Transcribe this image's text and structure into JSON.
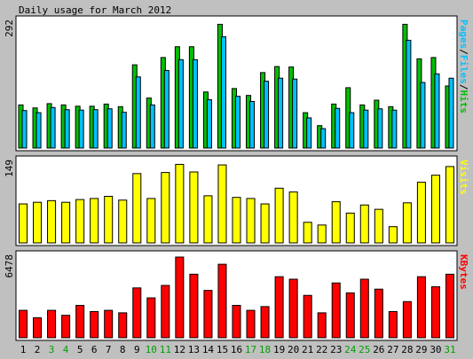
{
  "chart_data": {
    "type": "bar",
    "title": "Daily usage for March 2012",
    "categories": [
      "1",
      "2",
      "3",
      "4",
      "5",
      "6",
      "7",
      "8",
      "9",
      "10",
      "11",
      "12",
      "13",
      "14",
      "15",
      "16",
      "17",
      "18",
      "19",
      "20",
      "21",
      "22",
      "23",
      "24",
      "25",
      "26",
      "27",
      "28",
      "29",
      "30",
      "31"
    ],
    "weekend_days": [
      "3",
      "4",
      "10",
      "11",
      "17",
      "18",
      "24",
      "25",
      "31"
    ],
    "panels": [
      {
        "name": "hits-files-pages",
        "ymax_label": "292",
        "ymax": 292,
        "right_label_parts": [
          {
            "text": "Pages",
            "color": "#00c0ff"
          },
          {
            "text": "/",
            "color": "#000000"
          },
          {
            "text": "Files",
            "color": "#00c0ff"
          },
          {
            "text": "/",
            "color": "#000000"
          },
          {
            "text": "Hits",
            "color": "#00c000"
          }
        ],
        "series": [
          {
            "name": "Hits",
            "color": "#00c000",
            "values": [
              100,
              93,
              103,
              100,
              97,
              97,
              102,
              96,
              193,
              116,
              210,
              235,
              235,
              130,
              287,
              138,
              122,
              175,
              189,
              188,
              82,
              52,
              102,
              140,
              100,
              111,
              96,
              287,
              207,
              210,
              144
            ]
          },
          {
            "name": "Files",
            "color": "#00c0ff",
            "values": [
              87,
              82,
              94,
              89,
              88,
              89,
              91,
              83,
              165,
              100,
              180,
              205,
              205,
              112,
              258,
              120,
              108,
              155,
              162,
              160,
              70,
              45,
              92,
              82,
              88,
              91,
              88,
              250,
              152,
              172,
              162
            ]
          },
          {
            "name": "Pages",
            "color": "#0000ff",
            "values": [
              0,
              0,
              0,
              0,
              0,
              0,
              0,
              0,
              0,
              0,
              0,
              0,
              0,
              0,
              0,
              0,
              0,
              0,
              0,
              0,
              0,
              0,
              0,
              0,
              0,
              0,
              0,
              0,
              0,
              0,
              0
            ]
          }
        ]
      },
      {
        "name": "visits",
        "ymax_label": "149",
        "ymax": 149,
        "right_label_parts": [
          {
            "text": "Visits",
            "color": "#ffff00"
          }
        ],
        "series": [
          {
            "name": "Visits",
            "color": "#ffff00",
            "values": [
              72,
              75,
              78,
              75,
              80,
              82,
              86,
              79,
              128,
              82,
              130,
              145,
              131,
              87,
              144,
              84,
              82,
              72,
              101,
              94,
              38,
              33,
              76,
              55,
              70,
              62,
              30,
              74,
              112,
              125,
              141
            ]
          }
        ]
      },
      {
        "name": "kbytes",
        "ymax_label": "6478",
        "ymax": 6478,
        "right_label_parts": [
          {
            "text": "KBytes",
            "color": "#ff0000"
          }
        ],
        "series": [
          {
            "name": "KBytes",
            "color": "#ff0000",
            "values": [
              2200,
              1600,
              2200,
              1800,
              2600,
              2100,
              2200,
              2000,
              4000,
              3200,
              4200,
              6478,
              5100,
              3800,
              5900,
              2600,
              2200,
              2500,
              4900,
              4700,
              3400,
              2000,
              4400,
              3600,
              4700,
              3900,
              2100,
              2900,
              4900,
              4100,
              5100
            ]
          }
        ]
      }
    ],
    "colors": {
      "background": "#c0c0c0",
      "plot_background": "#ffffff",
      "weekday_label": "#000000",
      "weekend_label": "#00a000"
    }
  }
}
